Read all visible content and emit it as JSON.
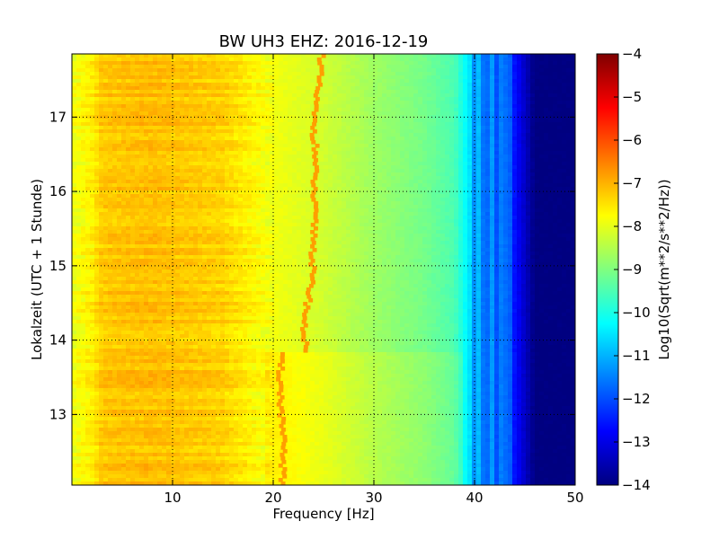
{
  "chart_data": {
    "type": "heatmap",
    "title": "BW UH3 EHZ: 2016-12-19",
    "xlabel": "Frequency [Hz]",
    "ylabel": "Lokalzeit (UTC + 1 Stunde)",
    "xlim": [
      0,
      50
    ],
    "ylim": [
      17.85,
      12.05
    ],
    "x_ticks": [
      10,
      20,
      30,
      40,
      50
    ],
    "y_ticks": [
      13,
      14,
      15,
      16,
      17
    ],
    "grid": true,
    "colorbar": {
      "label": "Log10(Sqrt(m**2/s**2/Hz))",
      "range": [
        -14,
        -4
      ],
      "ticks": [
        -4,
        -5,
        -6,
        -7,
        -8,
        -9,
        -10,
        -11,
        -12,
        -13,
        -14
      ],
      "colormap": "jet"
    },
    "spectral_profile": {
      "frequency_hz": [
        0,
        2,
        3,
        8,
        15,
        19,
        22,
        25,
        30,
        35,
        38,
        39.5,
        40,
        42,
        44,
        45,
        46,
        50
      ],
      "log10_amplitude": [
        -7.9,
        -7.6,
        -7.2,
        -7.1,
        -7.3,
        -7.8,
        -8.0,
        -8.2,
        -8.7,
        -9.1,
        -9.5,
        -10.5,
        -11.4,
        -11.9,
        -12.6,
        -13.3,
        -14.0,
        -14.0
      ]
    },
    "peak_track": {
      "label_hint": "narrow spectral line",
      "time_h": [
        12.05,
        12.5,
        13.0,
        13.5,
        13.8,
        13.85,
        14.2,
        14.6,
        15.0,
        15.5,
        16.0,
        16.5,
        17.0,
        17.5,
        17.85
      ],
      "frequency_hz": [
        20.9,
        21.0,
        20.8,
        20.7,
        20.7,
        23.3,
        23.0,
        23.6,
        23.9,
        24.1,
        24.0,
        24.2,
        24.0,
        24.5,
        24.9
      ],
      "log10_amplitude": -6.8
    },
    "time_change_h": 13.82
  }
}
